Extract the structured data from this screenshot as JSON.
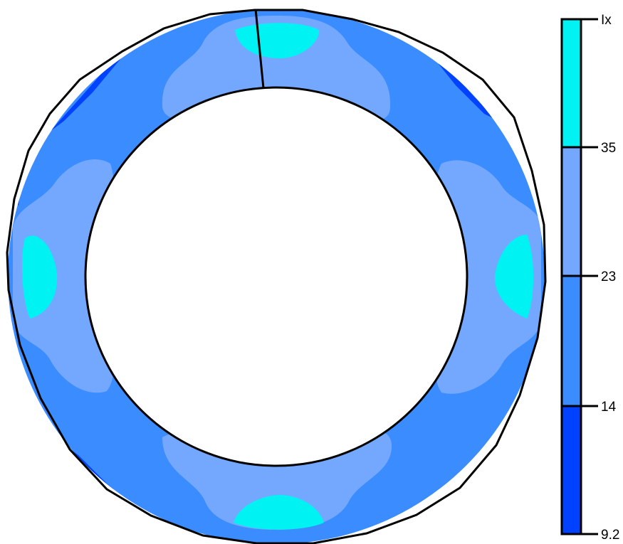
{
  "colors": {
    "background": "#ffffff",
    "band_1": "#0042ff",
    "band_2": "#3a8cff",
    "band_3": "#74a8ff",
    "band_4": "#00f2f2",
    "outline": "#000000"
  },
  "legend": {
    "ticks": [
      {
        "label": "Ix"
      },
      {
        "label": "35"
      },
      {
        "label": "23"
      },
      {
        "label": "14"
      },
      {
        "label": "9.2"
      }
    ]
  }
}
